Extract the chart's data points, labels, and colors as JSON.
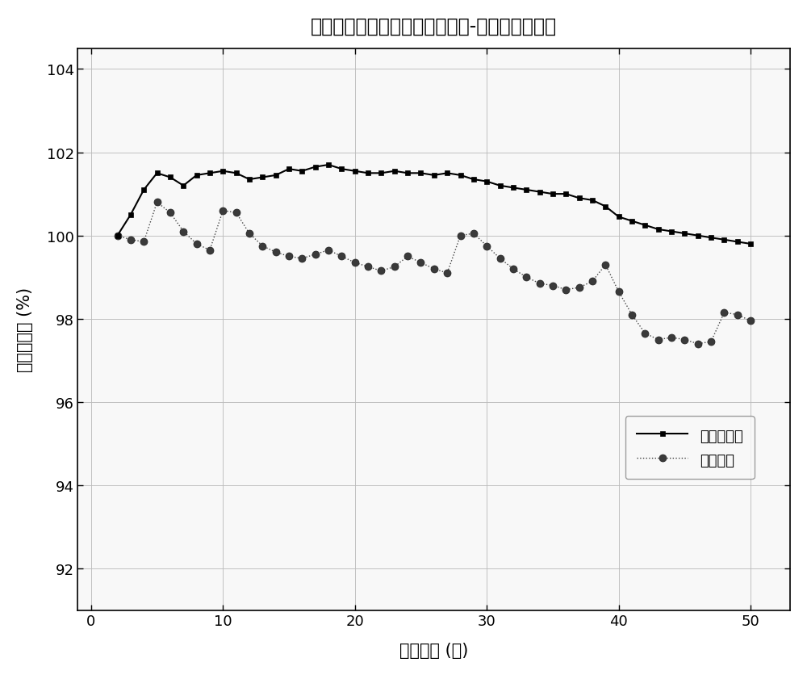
{
  "title": "多项式配组与常规配组循环周期-容量保持率曲线",
  "xlabel": "循环周期 (次)",
  "ylabel": "容量保持率 (%)",
  "xlim": [
    -1,
    53
  ],
  "ylim": [
    91,
    104.5
  ],
  "xticks": [
    0,
    10,
    20,
    30,
    40,
    50
  ],
  "yticks": [
    92,
    94,
    96,
    98,
    100,
    102,
    104
  ],
  "legend1": "多项式配组",
  "legend2": "常规配组",
  "series1_x": [
    2,
    3,
    4,
    5,
    6,
    7,
    8,
    9,
    10,
    11,
    12,
    13,
    14,
    15,
    16,
    17,
    18,
    19,
    20,
    21,
    22,
    23,
    24,
    25,
    26,
    27,
    28,
    29,
    30,
    31,
    32,
    33,
    34,
    35,
    36,
    37,
    38,
    39,
    40,
    41,
    42,
    43,
    44,
    45,
    46,
    47,
    48,
    49,
    50
  ],
  "series1_y": [
    100.0,
    100.5,
    101.1,
    101.5,
    101.4,
    101.2,
    101.45,
    101.5,
    101.55,
    101.5,
    101.35,
    101.4,
    101.45,
    101.6,
    101.55,
    101.65,
    101.7,
    101.6,
    101.55,
    101.5,
    101.5,
    101.55,
    101.5,
    101.5,
    101.45,
    101.5,
    101.45,
    101.35,
    101.3,
    101.2,
    101.15,
    101.1,
    101.05,
    101.0,
    101.0,
    100.9,
    100.85,
    100.7,
    100.45,
    100.35,
    100.25,
    100.15,
    100.1,
    100.05,
    100.0,
    99.95,
    99.9,
    99.85,
    99.8
  ],
  "series2_x": [
    2,
    3,
    4,
    5,
    6,
    7,
    8,
    9,
    10,
    11,
    12,
    13,
    14,
    15,
    16,
    17,
    18,
    19,
    20,
    21,
    22,
    23,
    24,
    25,
    26,
    27,
    28,
    29,
    30,
    31,
    32,
    33,
    34,
    35,
    36,
    37,
    38,
    39,
    40,
    41,
    42,
    43,
    44,
    45,
    46,
    47,
    48,
    49,
    50
  ],
  "series2_y": [
    100.0,
    99.9,
    99.85,
    100.8,
    100.55,
    100.1,
    99.8,
    99.65,
    100.6,
    100.55,
    100.05,
    99.75,
    99.6,
    99.5,
    99.45,
    99.55,
    99.65,
    99.5,
    99.35,
    99.25,
    99.15,
    99.25,
    99.5,
    99.35,
    99.2,
    99.1,
    100.0,
    100.05,
    99.75,
    99.45,
    99.2,
    99.0,
    98.85,
    98.8,
    98.7,
    98.75,
    98.9,
    99.3,
    98.65,
    98.1,
    97.65,
    97.5,
    97.55,
    97.5,
    97.4,
    97.45,
    98.15,
    98.1,
    97.95
  ],
  "line1_color": "#000000",
  "line2_color": "#444444",
  "bg_color": "#ffffff",
  "plot_bg": "#f8f8f8",
  "grid_color": "#bbbbbb"
}
